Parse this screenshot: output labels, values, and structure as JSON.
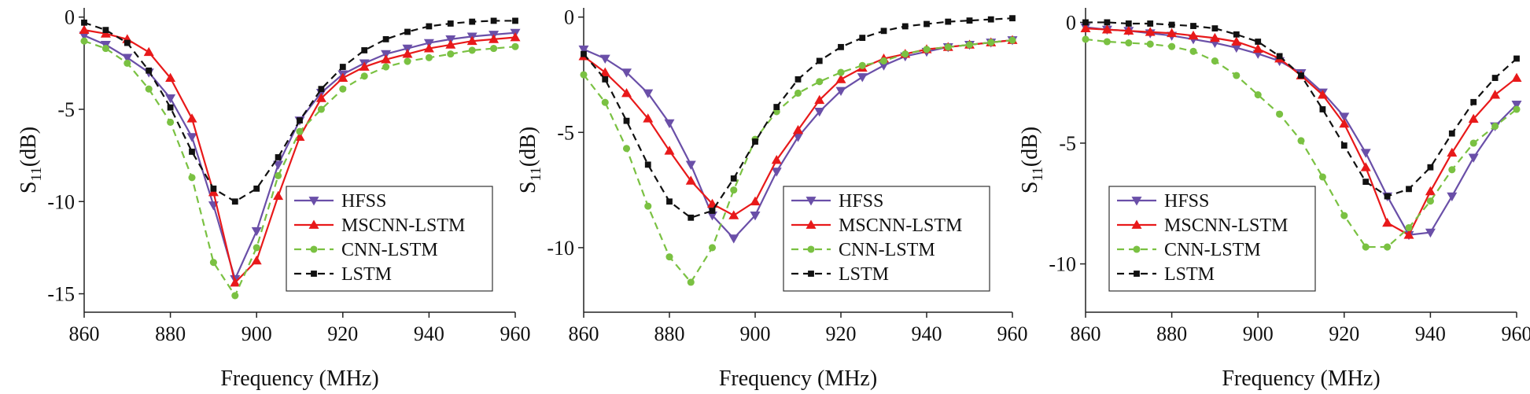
{
  "chart_data": [
    {
      "type": "line",
      "xlabel": "Frequency (MHz)",
      "ylabel_parts": [
        "S",
        "11",
        "(dB)"
      ],
      "x": [
        860,
        865,
        870,
        875,
        880,
        885,
        890,
        895,
        900,
        905,
        910,
        915,
        920,
        925,
        930,
        935,
        940,
        945,
        950,
        955,
        960
      ],
      "xlim": [
        860,
        960
      ],
      "xticks": [
        860,
        880,
        900,
        920,
        940,
        960
      ],
      "ylim": [
        -16,
        0.5
      ],
      "yticks": [
        0,
        -5,
        -10,
        -15
      ],
      "legend": "lower right",
      "series": [
        {
          "name": "HFSS",
          "color": "#6a4fa8",
          "marker": "triangle-down",
          "dashed": false,
          "values": [
            -1.0,
            -1.5,
            -2.2,
            -3.0,
            -4.4,
            -6.5,
            -10.2,
            -14.2,
            -11.6,
            -8.0,
            -5.6,
            -4.1,
            -3.1,
            -2.5,
            -2.0,
            -1.7,
            -1.4,
            -1.2,
            -1.05,
            -0.95,
            -0.85
          ]
        },
        {
          "name": "MSCNN-LSTM",
          "color": "#e8191a",
          "marker": "triangle-up",
          "dashed": false,
          "values": [
            -0.7,
            -0.9,
            -1.2,
            -1.9,
            -3.3,
            -5.5,
            -9.5,
            -14.4,
            -13.2,
            -9.7,
            -6.5,
            -4.4,
            -3.3,
            -2.7,
            -2.3,
            -2.0,
            -1.7,
            -1.5,
            -1.3,
            -1.2,
            -1.1
          ]
        },
        {
          "name": "CNN-LSTM",
          "color": "#7ac142",
          "marker": "circle",
          "dashed": true,
          "values": [
            -1.3,
            -1.7,
            -2.5,
            -3.9,
            -5.7,
            -8.7,
            -13.3,
            -15.1,
            -12.5,
            -8.6,
            -6.2,
            -5.0,
            -3.9,
            -3.2,
            -2.7,
            -2.4,
            -2.2,
            -2.0,
            -1.8,
            -1.7,
            -1.6
          ]
        },
        {
          "name": "LSTM",
          "color": "#111111",
          "marker": "square",
          "dashed": true,
          "values": [
            -0.3,
            -0.7,
            -1.4,
            -2.9,
            -4.9,
            -7.3,
            -9.3,
            -10.0,
            -9.3,
            -7.6,
            -5.6,
            -3.9,
            -2.7,
            -1.8,
            -1.2,
            -0.8,
            -0.5,
            -0.35,
            -0.25,
            -0.2,
            -0.2
          ]
        }
      ]
    },
    {
      "type": "line",
      "xlabel": "Frequency (MHz)",
      "ylabel_parts": [
        "S",
        "11",
        "(dB)"
      ],
      "x": [
        860,
        865,
        870,
        875,
        880,
        885,
        890,
        895,
        900,
        905,
        910,
        915,
        920,
        925,
        930,
        935,
        940,
        945,
        950,
        955,
        960
      ],
      "xlim": [
        860,
        960
      ],
      "xticks": [
        860,
        880,
        900,
        920,
        940,
        960
      ],
      "ylim": [
        -12.8,
        0.4
      ],
      "yticks": [
        0,
        -5,
        -10
      ],
      "legend": "lower right",
      "series": [
        {
          "name": "HFSS",
          "color": "#6a4fa8",
          "marker": "triangle-down",
          "dashed": false,
          "values": [
            -1.4,
            -1.8,
            -2.4,
            -3.3,
            -4.6,
            -6.4,
            -8.6,
            -9.6,
            -8.6,
            -6.7,
            -5.2,
            -4.1,
            -3.2,
            -2.6,
            -2.1,
            -1.7,
            -1.5,
            -1.3,
            -1.2,
            -1.1,
            -1.0
          ]
        },
        {
          "name": "MSCNN-LSTM",
          "color": "#e8191a",
          "marker": "triangle-up",
          "dashed": false,
          "values": [
            -1.7,
            -2.4,
            -3.3,
            -4.4,
            -5.8,
            -7.1,
            -8.1,
            -8.6,
            -8.0,
            -6.2,
            -4.9,
            -3.6,
            -2.7,
            -2.2,
            -1.8,
            -1.6,
            -1.4,
            -1.3,
            -1.2,
            -1.1,
            -1.0
          ]
        },
        {
          "name": "CNN-LSTM",
          "color": "#7ac142",
          "marker": "circle",
          "dashed": true,
          "values": [
            -2.5,
            -3.7,
            -5.7,
            -8.2,
            -10.4,
            -11.5,
            -10.0,
            -7.5,
            -5.3,
            -4.1,
            -3.3,
            -2.8,
            -2.4,
            -2.1,
            -1.9,
            -1.6,
            -1.4,
            -1.3,
            -1.2,
            -1.1,
            -1.0
          ]
        },
        {
          "name": "LSTM",
          "color": "#111111",
          "marker": "square",
          "dashed": true,
          "values": [
            -1.6,
            -2.7,
            -4.5,
            -6.4,
            -8.0,
            -8.7,
            -8.4,
            -7.0,
            -5.4,
            -3.9,
            -2.7,
            -1.9,
            -1.3,
            -0.9,
            -0.6,
            -0.4,
            -0.3,
            -0.2,
            -0.15,
            -0.1,
            -0.05
          ]
        }
      ]
    },
    {
      "type": "line",
      "xlabel": "Frequency (MHz)",
      "ylabel_parts": [
        "S",
        "11",
        "(dB)"
      ],
      "x": [
        860,
        865,
        870,
        875,
        880,
        885,
        890,
        895,
        900,
        905,
        910,
        915,
        920,
        925,
        930,
        935,
        940,
        945,
        950,
        955,
        960
      ],
      "xlim": [
        860,
        960
      ],
      "xticks": [
        860,
        880,
        900,
        920,
        940,
        960
      ],
      "ylim": [
        -12,
        0.6
      ],
      "yticks": [
        0,
        -5,
        -10
      ],
      "legend": "lower left",
      "series": [
        {
          "name": "HFSS",
          "color": "#6a4fa8",
          "marker": "triangle-down",
          "dashed": false,
          "values": [
            -0.2,
            -0.3,
            -0.35,
            -0.45,
            -0.55,
            -0.7,
            -0.85,
            -1.05,
            -1.3,
            -1.6,
            -2.1,
            -2.9,
            -3.9,
            -5.4,
            -7.2,
            -8.8,
            -8.7,
            -7.2,
            -5.6,
            -4.3,
            -3.4
          ]
        },
        {
          "name": "MSCNN-LSTM",
          "color": "#e8191a",
          "marker": "triangle-up",
          "dashed": false,
          "values": [
            -0.25,
            -0.3,
            -0.35,
            -0.4,
            -0.45,
            -0.55,
            -0.65,
            -0.8,
            -1.1,
            -1.5,
            -2.2,
            -3.0,
            -4.2,
            -6.0,
            -8.3,
            -8.8,
            -7.0,
            -5.4,
            -4.0,
            -3.0,
            -2.3
          ]
        },
        {
          "name": "CNN-LSTM",
          "color": "#7ac142",
          "marker": "circle",
          "dashed": true,
          "values": [
            -0.7,
            -0.8,
            -0.85,
            -0.9,
            -1.0,
            -1.2,
            -1.6,
            -2.2,
            -3.0,
            -3.8,
            -4.9,
            -6.4,
            -8.0,
            -9.3,
            -9.3,
            -8.5,
            -7.4,
            -6.1,
            -5.0,
            -4.3,
            -3.6
          ]
        },
        {
          "name": "LSTM",
          "color": "#111111",
          "marker": "square",
          "dashed": true,
          "values": [
            0,
            0,
            -0.05,
            -0.05,
            -0.1,
            -0.15,
            -0.25,
            -0.5,
            -0.8,
            -1.4,
            -2.2,
            -3.6,
            -5.1,
            -6.6,
            -7.2,
            -6.9,
            -6.0,
            -4.6,
            -3.3,
            -2.3,
            -1.5
          ]
        }
      ]
    }
  ]
}
